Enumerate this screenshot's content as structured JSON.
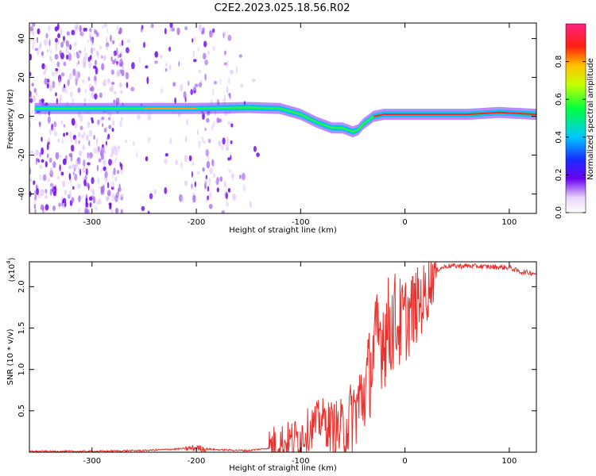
{
  "title": "C2E2.2023.025.18.56.R02",
  "chart_data": [
    {
      "type": "heatmap",
      "name": "spectrogram",
      "xlabel": "Height of straight line (km)",
      "ylabel": "Frequency (Hz)",
      "xlim": [
        -360,
        126
      ],
      "ylim": [
        -50,
        48
      ],
      "xticks": [
        -300,
        -200,
        -100,
        0,
        100
      ],
      "yticks": [
        -40,
        -20,
        0,
        20,
        40
      ],
      "ridge": {
        "x": [
          -355,
          -300,
          -250,
          -200,
          -150,
          -120,
          -100,
          -85,
          -70,
          -60,
          -50,
          -45,
          -40,
          -30,
          -20,
          0,
          30,
          60,
          90,
          126
        ],
        "frequency": [
          4,
          4,
          4,
          4,
          4.5,
          4,
          1,
          -3,
          -6,
          -6,
          -8,
          -7,
          -4,
          0,
          1,
          1,
          1,
          1,
          2,
          1
        ]
      },
      "colorbar": {
        "label": "Normalized spectral amplitude",
        "range": [
          0.0,
          1.0
        ],
        "ticks": [
          0.0,
          0.2,
          0.4,
          0.6,
          0.8
        ]
      }
    },
    {
      "type": "line",
      "name": "snr",
      "xlabel": "Height of straight line (km)",
      "ylabel": "SNR (10 * v/v)",
      "yscale_note": "(x10",
      "yscale_exp": "4",
      "yscale_close": ")",
      "xlim": [
        -360,
        126
      ],
      "ylim": [
        0,
        2.3
      ],
      "xticks": [
        -300,
        -200,
        -100,
        0,
        100
      ],
      "yticks": [
        0.5,
        1.0,
        1.5,
        2.0
      ],
      "ytick_labels": [
        "0.5",
        "1.0",
        "1.5",
        "2.0"
      ],
      "series": [
        {
          "name": "SNR",
          "color": "#e8302c",
          "x": [
            -360,
            -300,
            -250,
            -200,
            -180,
            -150,
            -130,
            -120,
            -110,
            -100,
            -90,
            -80,
            -70,
            -60,
            -50,
            -40,
            -35,
            -30,
            -25,
            -20,
            -15,
            -10,
            -5,
            0,
            10,
            20,
            25,
            30,
            40,
            60,
            80,
            100,
            110,
            126
          ],
          "y": [
            0.01,
            0.01,
            0.02,
            0.05,
            0.03,
            0.02,
            0.05,
            0.1,
            0.12,
            0.2,
            0.3,
            0.4,
            0.3,
            0.25,
            0.45,
            0.7,
            0.9,
            1.2,
            1.4,
            1.45,
            1.5,
            1.6,
            1.55,
            1.6,
            1.75,
            1.9,
            2.1,
            2.2,
            2.25,
            2.25,
            2.24,
            2.23,
            2.18,
            2.16
          ]
        }
      ]
    }
  ]
}
